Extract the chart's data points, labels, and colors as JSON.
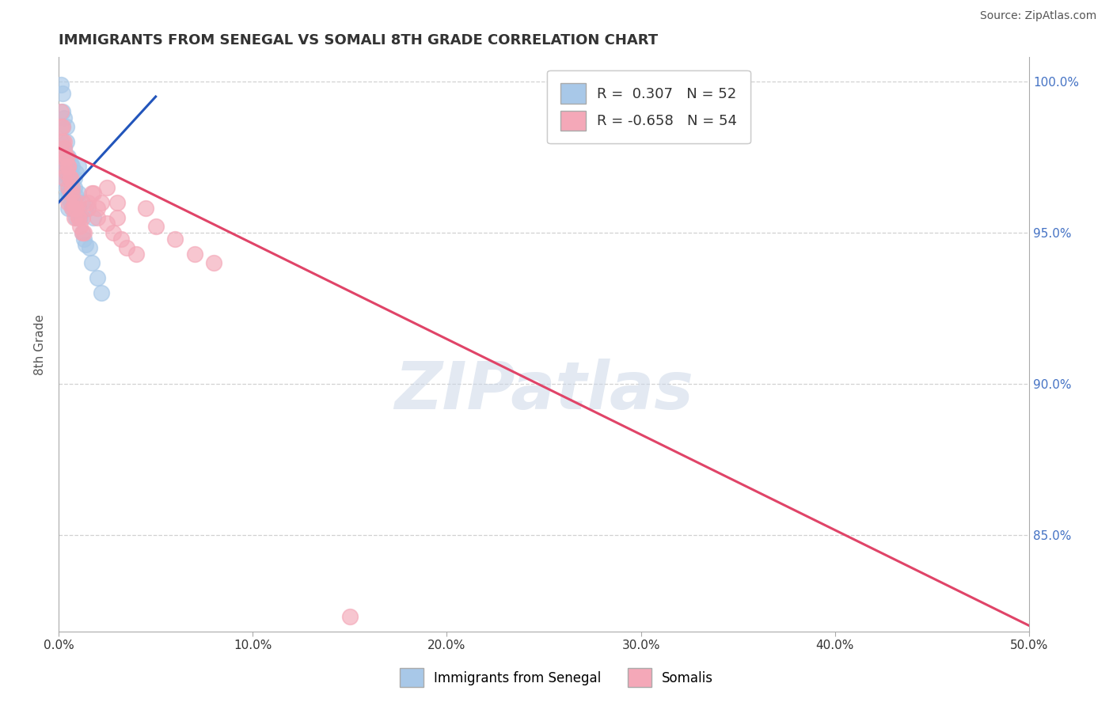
{
  "title": "IMMIGRANTS FROM SENEGAL VS SOMALI 8TH GRADE CORRELATION CHART",
  "source": "Source: ZipAtlas.com",
  "xlabel_bottom": "Immigrants from Senegal",
  "xlabel_bottom2": "Somalis",
  "ylabel": "8th Grade",
  "xlim": [
    0.0,
    0.5
  ],
  "ylim": [
    0.818,
    1.008
  ],
  "xtick_labels": [
    "0.0%",
    "10.0%",
    "20.0%",
    "30.0%",
    "40.0%",
    "50.0%"
  ],
  "xtick_vals": [
    0.0,
    0.1,
    0.2,
    0.3,
    0.4,
    0.5
  ],
  "ytick_labels": [
    "85.0%",
    "90.0%",
    "95.0%",
    "100.0%"
  ],
  "ytick_vals": [
    0.85,
    0.9,
    0.95,
    1.0
  ],
  "senegal_color": "#a8c8e8",
  "somali_color": "#f4a8b8",
  "senegal_line_color": "#2255bb",
  "somali_line_color": "#e04468",
  "R_senegal": 0.307,
  "N_senegal": 52,
  "R_somali": -0.658,
  "N_somali": 54,
  "watermark": "ZIPatlas",
  "background_color": "#ffffff",
  "senegal_x": [
    0.001,
    0.001,
    0.002,
    0.002,
    0.002,
    0.003,
    0.003,
    0.003,
    0.003,
    0.004,
    0.004,
    0.004,
    0.005,
    0.005,
    0.005,
    0.005,
    0.006,
    0.006,
    0.006,
    0.007,
    0.007,
    0.007,
    0.008,
    0.008,
    0.009,
    0.009,
    0.01,
    0.01,
    0.01,
    0.011,
    0.012,
    0.012,
    0.013,
    0.014,
    0.015,
    0.016,
    0.017,
    0.018,
    0.02,
    0.022,
    0.001,
    0.002,
    0.002,
    0.003,
    0.004,
    0.004,
    0.005,
    0.006,
    0.007,
    0.008,
    0.009,
    0.01
  ],
  "senegal_y": [
    0.975,
    0.98,
    0.972,
    0.985,
    0.968,
    0.97,
    0.978,
    0.966,
    0.973,
    0.975,
    0.962,
    0.969,
    0.965,
    0.971,
    0.958,
    0.963,
    0.967,
    0.96,
    0.973,
    0.958,
    0.972,
    0.965,
    0.96,
    0.968,
    0.955,
    0.97,
    0.963,
    0.958,
    0.972,
    0.955,
    0.96,
    0.95,
    0.948,
    0.946,
    0.958,
    0.945,
    0.94,
    0.955,
    0.935,
    0.93,
    0.999,
    0.996,
    0.99,
    0.988,
    0.985,
    0.98,
    0.975,
    0.97,
    0.968,
    0.965,
    0.962,
    0.958
  ],
  "somali_x": [
    0.001,
    0.001,
    0.002,
    0.002,
    0.003,
    0.003,
    0.003,
    0.004,
    0.004,
    0.005,
    0.005,
    0.005,
    0.006,
    0.006,
    0.007,
    0.007,
    0.008,
    0.008,
    0.009,
    0.01,
    0.01,
    0.011,
    0.012,
    0.013,
    0.015,
    0.017,
    0.02,
    0.022,
    0.025,
    0.028,
    0.03,
    0.032,
    0.035,
    0.04,
    0.045,
    0.05,
    0.06,
    0.07,
    0.08,
    0.002,
    0.003,
    0.004,
    0.005,
    0.006,
    0.007,
    0.008,
    0.01,
    0.012,
    0.015,
    0.018,
    0.02,
    0.025,
    0.03,
    0.15
  ],
  "somali_y": [
    0.99,
    0.985,
    0.98,
    0.975,
    0.978,
    0.972,
    0.968,
    0.975,
    0.97,
    0.972,
    0.965,
    0.96,
    0.968,
    0.963,
    0.965,
    0.958,
    0.96,
    0.955,
    0.958,
    0.96,
    0.955,
    0.952,
    0.955,
    0.95,
    0.958,
    0.963,
    0.955,
    0.96,
    0.953,
    0.95,
    0.955,
    0.948,
    0.945,
    0.943,
    0.958,
    0.952,
    0.948,
    0.943,
    0.94,
    0.985,
    0.98,
    0.975,
    0.972,
    0.968,
    0.963,
    0.958,
    0.955,
    0.95,
    0.96,
    0.963,
    0.958,
    0.965,
    0.96,
    0.823
  ],
  "senegal_trendline_x": [
    0.0,
    0.05
  ],
  "senegal_trendline_y": [
    0.96,
    0.995
  ],
  "somali_trendline_x": [
    0.0,
    0.5
  ],
  "somali_trendline_y": [
    0.978,
    0.82
  ]
}
